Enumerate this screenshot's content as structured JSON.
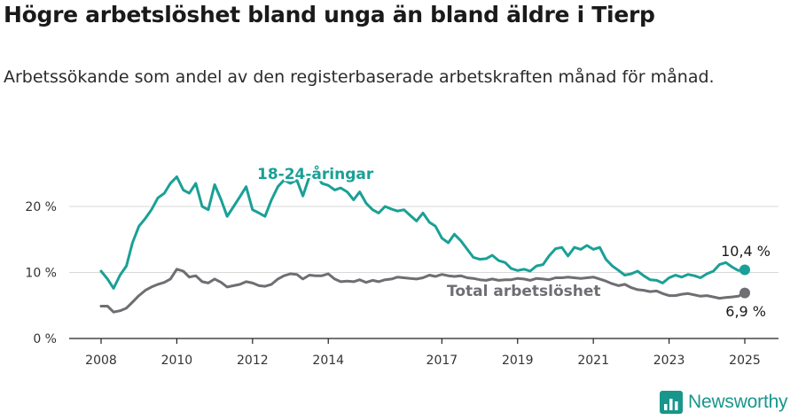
{
  "title": "Högre arbetslöshet bland unga än bland äldre i Tierp",
  "subtitle": "Arbetssökande som andel av den registerbaserade arbetskraften månad för månad.",
  "brand": {
    "name": "Newsworthy",
    "icon": "newsworthy-logo-icon",
    "color": "#19968c"
  },
  "chart_data": {
    "type": "line",
    "title": "Högre arbetslöshet bland unga än bland äldre i Tierp",
    "xlabel": "",
    "ylabel": "",
    "ylim": [
      0,
      25
    ],
    "xlim": [
      2008.0,
      2025.25
    ],
    "yticks": [
      0,
      10,
      20
    ],
    "ytick_labels": [
      "0 %",
      "10 %",
      "20 %"
    ],
    "xticks": [
      2008,
      2010,
      2012,
      2014,
      2017,
      2019,
      2021,
      2023,
      2025
    ],
    "xtick_labels": [
      "2008",
      "2010",
      "2012",
      "2014",
      "2017",
      "2019",
      "2021",
      "2023",
      "2025"
    ],
    "grid": "horizontal",
    "legend": "direct labels on lines",
    "series": [
      {
        "name": "18-24-åringar",
        "color": "#1aa096",
        "end_label": "10,4 %",
        "x": [
          2008.0,
          2008.17,
          2008.33,
          2008.5,
          2008.67,
          2008.83,
          2009.0,
          2009.17,
          2009.33,
          2009.5,
          2009.67,
          2009.83,
          2010.0,
          2010.17,
          2010.33,
          2010.5,
          2010.67,
          2010.83,
          2011.0,
          2011.17,
          2011.33,
          2011.5,
          2011.67,
          2011.83,
          2012.0,
          2012.17,
          2012.33,
          2012.5,
          2012.67,
          2012.83,
          2013.0,
          2013.17,
          2013.33,
          2013.5,
          2013.67,
          2013.83,
          2014.0,
          2014.17,
          2014.33,
          2014.5,
          2014.67,
          2014.83,
          2015.0,
          2015.17,
          2015.33,
          2015.5,
          2015.67,
          2015.83,
          2016.0,
          2016.17,
          2016.33,
          2016.5,
          2016.67,
          2016.83,
          2017.0,
          2017.17,
          2017.33,
          2017.5,
          2017.67,
          2017.83,
          2018.0,
          2018.17,
          2018.33,
          2018.5,
          2018.67,
          2018.83,
          2019.0,
          2019.17,
          2019.33,
          2019.5,
          2019.67,
          2019.83,
          2020.0,
          2020.17,
          2020.33,
          2020.5,
          2020.67,
          2020.83,
          2021.0,
          2021.17,
          2021.33,
          2021.5,
          2021.67,
          2021.83,
          2022.0,
          2022.17,
          2022.33,
          2022.5,
          2022.67,
          2022.83,
          2023.0,
          2023.17,
          2023.33,
          2023.5,
          2023.67,
          2023.83,
          2024.0,
          2024.17,
          2024.33,
          2024.5,
          2024.67,
          2024.83,
          2025.0
        ],
        "values": [
          10.2,
          9.0,
          7.6,
          9.6,
          11.0,
          14.5,
          17.0,
          18.2,
          19.5,
          21.3,
          22.0,
          23.5,
          24.5,
          22.5,
          22.0,
          23.5,
          20.0,
          19.5,
          23.3,
          21.0,
          18.5,
          20.0,
          21.5,
          23.0,
          19.5,
          19.0,
          18.5,
          21.0,
          23.0,
          24.0,
          23.5,
          24.0,
          21.6,
          24.5,
          25.0,
          23.5,
          23.2,
          22.5,
          22.8,
          22.2,
          21.0,
          22.2,
          20.5,
          19.5,
          19.0,
          20.0,
          19.6,
          19.3,
          19.5,
          18.6,
          17.8,
          19.0,
          17.6,
          17.0,
          15.2,
          14.5,
          15.8,
          14.8,
          13.5,
          12.3,
          12.0,
          12.1,
          12.6,
          11.8,
          11.5,
          10.6,
          10.3,
          10.5,
          10.2,
          11.0,
          11.2,
          12.5,
          13.6,
          13.8,
          12.5,
          13.8,
          13.5,
          14.1,
          13.5,
          13.8,
          12.0,
          11.0,
          10.3,
          9.6,
          9.8,
          10.2,
          9.5,
          8.9,
          8.8,
          8.4,
          9.2,
          9.6,
          9.3,
          9.7,
          9.5,
          9.2,
          9.8,
          10.2,
          11.2,
          11.5,
          10.8,
          10.3,
          10.4
        ]
      },
      {
        "name": "Total arbetslöshet",
        "color": "#6e6e73",
        "end_label": "6,9 %",
        "x": [
          2008.0,
          2008.17,
          2008.33,
          2008.5,
          2008.67,
          2008.83,
          2009.0,
          2009.17,
          2009.33,
          2009.5,
          2009.67,
          2009.83,
          2010.0,
          2010.17,
          2010.33,
          2010.5,
          2010.67,
          2010.83,
          2011.0,
          2011.17,
          2011.33,
          2011.5,
          2011.67,
          2011.83,
          2012.0,
          2012.17,
          2012.33,
          2012.5,
          2012.67,
          2012.83,
          2013.0,
          2013.17,
          2013.33,
          2013.5,
          2013.67,
          2013.83,
          2014.0,
          2014.17,
          2014.33,
          2014.5,
          2014.67,
          2014.83,
          2015.0,
          2015.17,
          2015.33,
          2015.5,
          2015.67,
          2015.83,
          2016.0,
          2016.17,
          2016.33,
          2016.5,
          2016.67,
          2016.83,
          2017.0,
          2017.17,
          2017.33,
          2017.5,
          2017.67,
          2017.83,
          2018.0,
          2018.17,
          2018.33,
          2018.5,
          2018.67,
          2018.83,
          2019.0,
          2019.17,
          2019.33,
          2019.5,
          2019.67,
          2019.83,
          2020.0,
          2020.17,
          2020.33,
          2020.5,
          2020.67,
          2020.83,
          2021.0,
          2021.17,
          2021.33,
          2021.5,
          2021.67,
          2021.83,
          2022.0,
          2022.17,
          2022.33,
          2022.5,
          2022.67,
          2022.83,
          2023.0,
          2023.17,
          2023.33,
          2023.5,
          2023.67,
          2023.83,
          2024.0,
          2024.17,
          2024.33,
          2024.5,
          2024.67,
          2024.83,
          2025.0
        ],
        "values": [
          4.9,
          4.9,
          4.0,
          4.2,
          4.6,
          5.5,
          6.5,
          7.3,
          7.8,
          8.2,
          8.5,
          9.0,
          10.5,
          10.2,
          9.3,
          9.5,
          8.6,
          8.4,
          9.0,
          8.5,
          7.8,
          8.0,
          8.2,
          8.6,
          8.4,
          8.0,
          7.9,
          8.2,
          9.0,
          9.5,
          9.8,
          9.7,
          9.0,
          9.6,
          9.5,
          9.5,
          9.8,
          9.0,
          8.6,
          8.7,
          8.6,
          8.9,
          8.5,
          8.8,
          8.6,
          8.9,
          9.0,
          9.3,
          9.2,
          9.1,
          9.0,
          9.2,
          9.6,
          9.4,
          9.7,
          9.5,
          9.4,
          9.5,
          9.2,
          9.1,
          8.9,
          8.8,
          9.0,
          8.8,
          8.9,
          8.9,
          9.1,
          9.0,
          8.8,
          9.1,
          9.0,
          8.9,
          9.2,
          9.2,
          9.3,
          9.2,
          9.1,
          9.2,
          9.3,
          9.0,
          8.7,
          8.3,
          8.0,
          8.2,
          7.7,
          7.4,
          7.3,
          7.1,
          7.2,
          6.8,
          6.5,
          6.5,
          6.7,
          6.8,
          6.6,
          6.4,
          6.5,
          6.3,
          6.1,
          6.2,
          6.3,
          6.4,
          6.9
        ]
      }
    ]
  }
}
